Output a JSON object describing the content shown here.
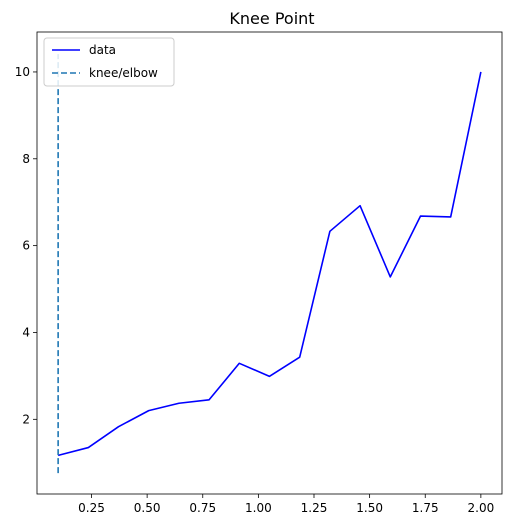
{
  "chart_data": {
    "type": "line",
    "title": "Knee Point",
    "xlabel": "",
    "ylabel": "",
    "xlim": [
      0.005,
      2.095
    ],
    "ylim": [
      0.28,
      10.92
    ],
    "x_ticks": [
      0.25,
      0.5,
      0.75,
      1.0,
      1.25,
      1.5,
      1.75,
      2.0
    ],
    "x_tick_labels": [
      "0.25",
      "0.50",
      "0.75",
      "1.00",
      "1.25",
      "1.50",
      "1.75",
      "2.00"
    ],
    "y_ticks": [
      2,
      4,
      6,
      8,
      10
    ],
    "y_tick_labels": [
      "2",
      "4",
      "6",
      "8",
      "10"
    ],
    "grid": false,
    "legend": {
      "position": "top-left",
      "entries": [
        "data",
        "knee/elbow"
      ]
    },
    "series": [
      {
        "name": "data",
        "color": "#0000ff",
        "style": "solid",
        "x": [
          0.1,
          0.2357,
          0.3714,
          0.5071,
          0.6429,
          0.7786,
          0.9143,
          1.05,
          1.1857,
          1.3214,
          1.4571,
          1.5929,
          1.7286,
          1.8643,
          2.0
        ],
        "y": [
          1.17,
          1.35,
          1.83,
          2.2,
          2.37,
          2.45,
          3.29,
          2.99,
          3.43,
          6.33,
          6.92,
          5.28,
          6.68,
          6.66,
          10.0
        ]
      }
    ],
    "knee": {
      "name": "knee/elbow",
      "color": "#1f77b4",
      "style": "dashed",
      "x": 0.1,
      "y_range": [
        0.76,
        10.41
      ]
    }
  }
}
